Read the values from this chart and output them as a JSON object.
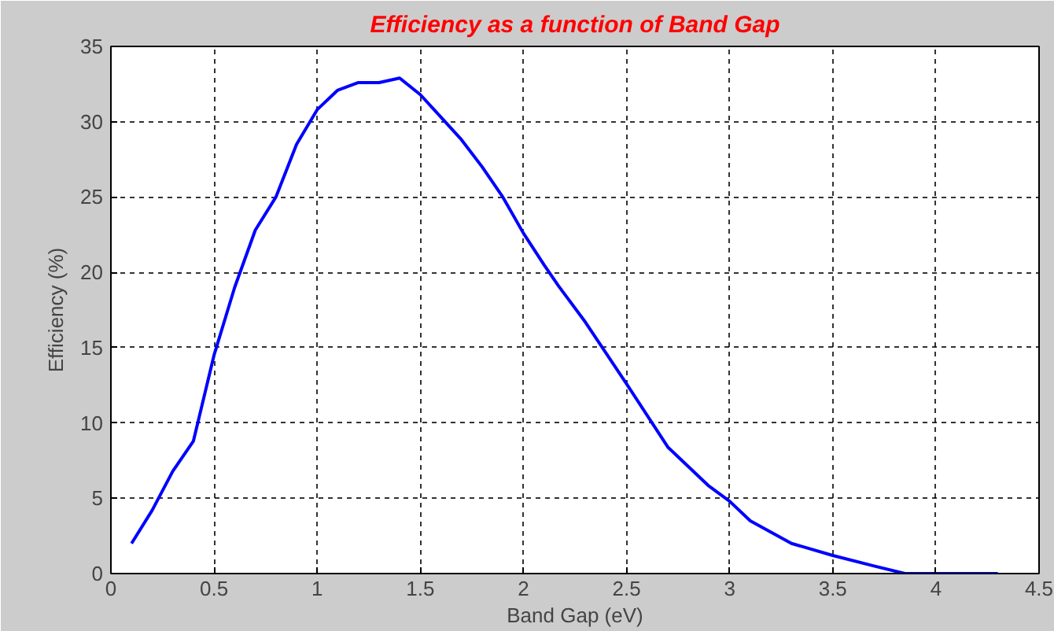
{
  "chart_data": {
    "type": "line",
    "title": "Efficiency as a function of Band Gap",
    "xlabel": "Band Gap (eV)",
    "ylabel": "Efficiency (%)",
    "x": [
      0.1,
      0.2,
      0.3,
      0.4,
      0.5,
      0.6,
      0.7,
      0.8,
      0.9,
      1.0,
      1.1,
      1.2,
      1.3,
      1.4,
      1.5,
      1.6,
      1.7,
      1.8,
      1.9,
      2.0,
      2.1,
      2.17,
      2.3,
      2.5,
      2.7,
      2.9,
      3.0,
      3.1,
      3.3,
      3.5,
      3.7,
      3.85,
      4.3
    ],
    "series": [
      {
        "color": "#0000ff",
        "values": [
          2,
          4.2,
          6.8,
          8.8,
          14.5,
          19,
          22.8,
          25,
          28.5,
          30.8,
          32.1,
          32.6,
          32.6,
          32.9,
          31.8,
          30.3,
          28.8,
          27,
          25,
          22.6,
          20.5,
          19.1,
          16.7,
          12.6,
          8.4,
          5.8,
          4.8,
          3.5,
          2.0,
          1.2,
          0.5,
          0,
          0
        ]
      }
    ],
    "xlim": [
      0,
      4.5
    ],
    "ylim": [
      0,
      35
    ],
    "xticks": [
      0,
      0.5,
      1,
      1.5,
      2,
      2.5,
      3,
      3.5,
      4,
      4.5
    ],
    "yticks": [
      0,
      5,
      10,
      15,
      20,
      25,
      30,
      35
    ],
    "grid": true,
    "marker": "none",
    "line_style": "solid"
  }
}
